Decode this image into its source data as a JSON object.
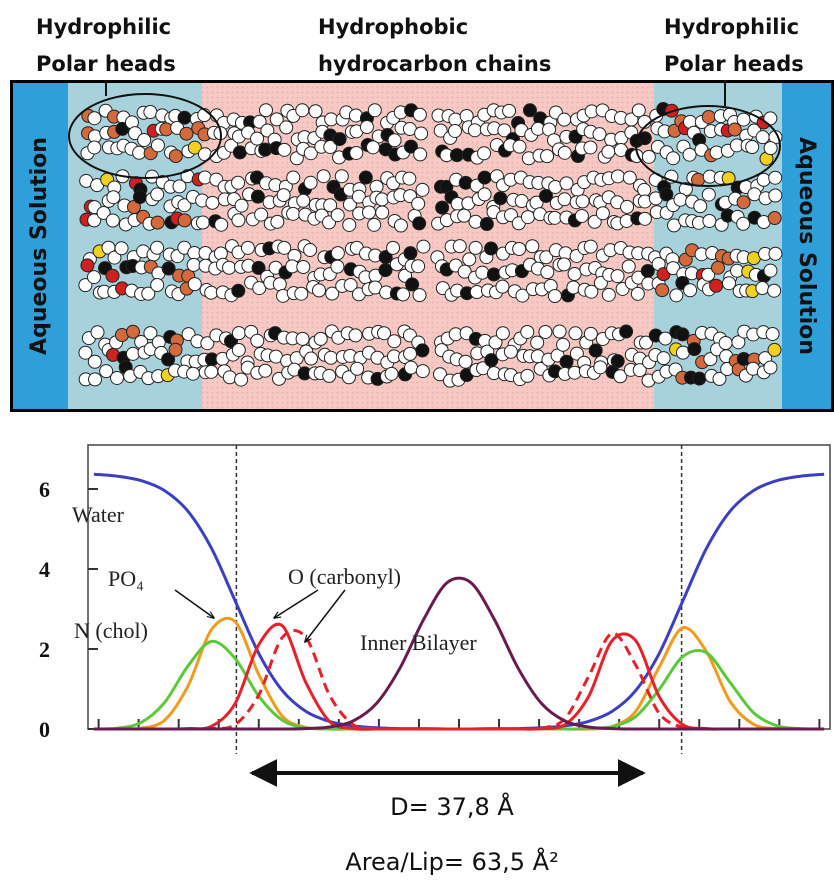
{
  "header": {
    "left": [
      "Hydrophilic",
      "Polar heads"
    ],
    "center": [
      "Hydrophobic",
      "hydrocarbon chains"
    ],
    "right": [
      "Hydrophilic",
      "Polar heads"
    ],
    "aqueous": [
      "Aqueous Solution",
      "Aqueous Solution"
    ]
  },
  "chart_data": {
    "type": "line",
    "x": [
      -31,
      -29,
      -27,
      -25,
      -23,
      -21,
      -19,
      -17,
      -15,
      -13,
      -11,
      -9,
      -7,
      -5,
      -3,
      -1,
      1,
      3,
      5,
      7,
      9,
      11,
      13,
      15,
      17,
      19,
      21,
      23,
      25,
      27,
      29,
      31
    ],
    "xlim": [
      -31.5,
      31.5
    ],
    "xticks": [
      -30.6,
      -27.2,
      -23.8,
      -20.4,
      -17,
      -13.6,
      -10.2,
      -6.8,
      -3.4,
      0,
      3.4,
      6.8,
      10.2,
      13.6,
      17,
      20.4,
      23.8,
      27.2,
      30.6
    ],
    "xtick_labels": false,
    "ylim": [
      0,
      7.1
    ],
    "yticks": [
      0,
      2,
      4,
      6
    ],
    "dashed_lines_x": [
      -18.9,
      18.9
    ],
    "series": [
      {
        "name": "Water",
        "color": "#3b3fc4",
        "values": [
          6.37,
          6.32,
          6.21,
          5.96,
          5.44,
          4.51,
          3.2,
          1.89,
          0.96,
          0.44,
          0.19,
          0.08,
          0.03,
          0.01,
          0.01,
          0,
          0,
          0.01,
          0.01,
          0.03,
          0.08,
          0.19,
          0.44,
          0.96,
          1.89,
          3.2,
          4.51,
          5.44,
          5.96,
          6.21,
          6.32,
          6.37
        ]
      },
      {
        "name": "PO₄",
        "color": "#f39a1e",
        "values": [
          0,
          0,
          0.02,
          0.22,
          1.08,
          2.49,
          2.68,
          1.36,
          0.32,
          0.04,
          0,
          0,
          0,
          0,
          0,
          0,
          0,
          0,
          0,
          0,
          0,
          0,
          0.06,
          0.44,
          1.55,
          2.53,
          1.94,
          0.7,
          0.12,
          0.01,
          0,
          0
        ]
      },
      {
        "name": "N (chol)",
        "color": "#5cc83a",
        "values": [
          0,
          0.02,
          0.16,
          0.66,
          1.58,
          2.19,
          1.76,
          0.82,
          0.22,
          0.03,
          0,
          0,
          0,
          0,
          0,
          0,
          0,
          0,
          0,
          0,
          0,
          0.01,
          0.06,
          0.31,
          0.99,
          1.81,
          1.91,
          1.17,
          0.41,
          0.08,
          0.01,
          0
        ]
      },
      {
        "name": "O (carbonyl)",
        "color": "#e8202a",
        "values": [
          0,
          0,
          0,
          0,
          0.01,
          0.07,
          0.64,
          2.11,
          2.58,
          1.16,
          0.19,
          0.01,
          0,
          0,
          0,
          0,
          0,
          0,
          0,
          0.01,
          0.11,
          0.81,
          2.21,
          2.21,
          0.81,
          0.11,
          0.01,
          0,
          0,
          0,
          0,
          0
        ]
      },
      {
        "color": "#e8202a",
        "dash": true,
        "values": [
          0,
          0,
          0,
          0,
          0,
          0.01,
          0.11,
          0.85,
          2.29,
          2.29,
          0.85,
          0.11,
          0.01,
          0,
          0,
          0,
          0,
          0,
          0,
          0.02,
          0.26,
          1.31,
          2.39,
          1.6,
          0.39,
          0.04,
          0,
          0,
          0,
          0,
          0,
          0
        ]
      },
      {
        "name": "Inner Bilayer",
        "color": "#6a1b4d",
        "values": [
          0,
          0,
          0,
          0,
          0,
          0,
          0,
          0,
          0,
          0.01,
          0.05,
          0.2,
          0.64,
          1.53,
          2.74,
          3.66,
          3.66,
          2.74,
          1.53,
          0.64,
          0.2,
          0.05,
          0.01,
          0,
          0,
          0,
          0,
          0,
          0,
          0,
          0,
          0
        ]
      }
    ]
  },
  "captions": [
    "D= 37,8 Å",
    "Area/Lip= 63,5 Å²"
  ]
}
